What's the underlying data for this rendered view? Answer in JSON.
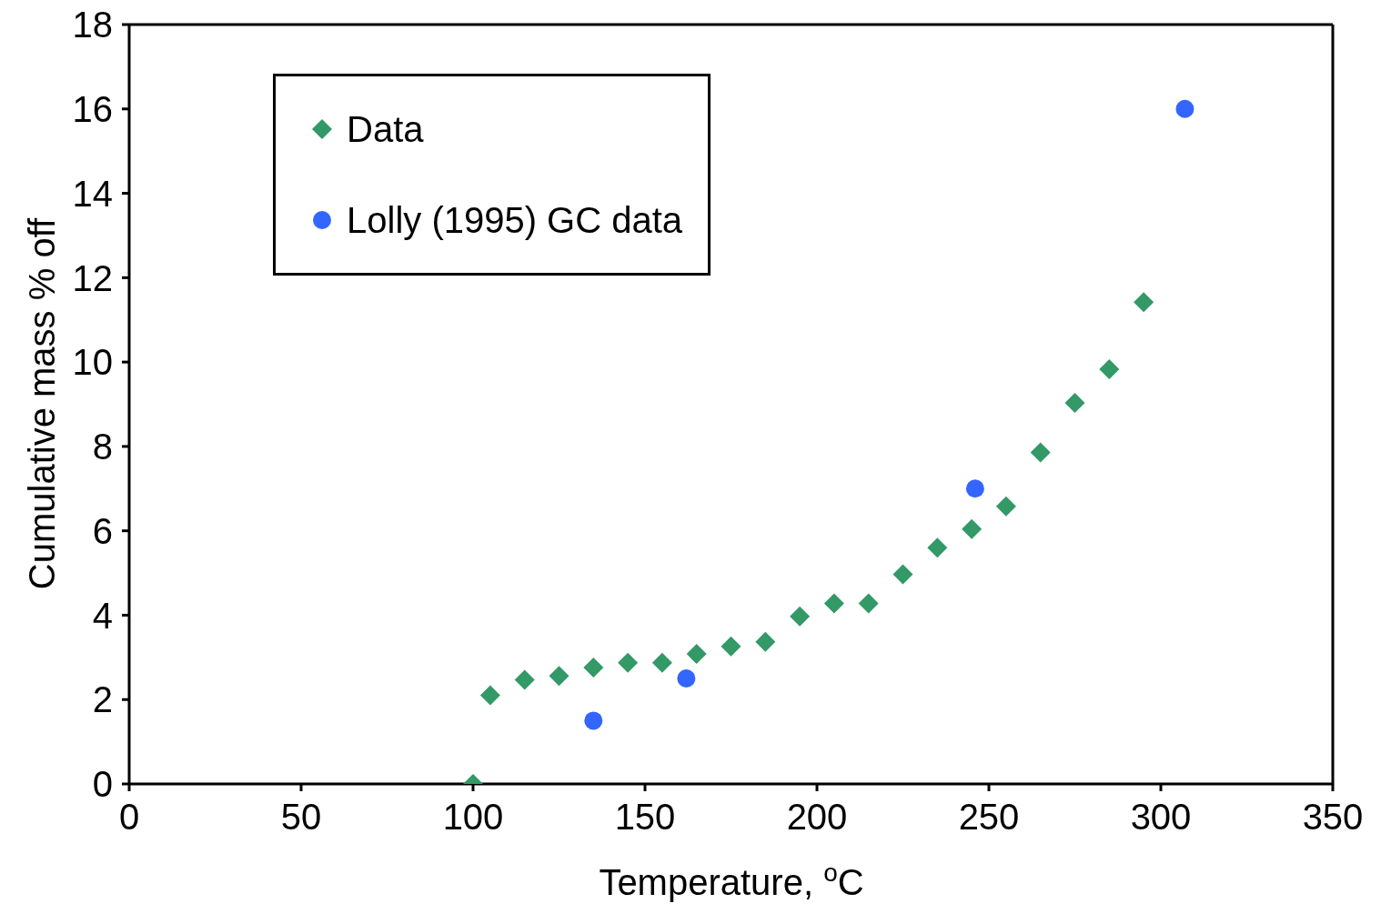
{
  "chart_data": {
    "type": "scatter",
    "xlabel": "Temperature, $^{o}$C",
    "ylabel": "Cumulative mass % off",
    "xlim": [
      0,
      350
    ],
    "xticks": [
      0,
      50,
      100,
      150,
      200,
      250,
      300,
      350
    ],
    "ylim": [
      0,
      18
    ],
    "yticks": [
      0,
      2,
      4,
      6,
      8,
      10,
      12,
      14,
      16,
      18
    ],
    "legend": "top left",
    "series": [
      {
        "name": "Data",
        "color": "#339966",
        "marker": "diamond",
        "x": [
          100,
          105,
          115,
          125,
          135,
          145,
          155,
          165,
          175,
          185,
          195,
          205,
          215,
          225,
          235,
          245,
          255,
          265,
          275,
          285,
          295
        ],
        "values": [
          0,
          2.1,
          2.47,
          2.56,
          2.76,
          2.87,
          2.87,
          3.08,
          3.26,
          3.37,
          3.97,
          4.28,
          4.28,
          4.97,
          5.6,
          6.04,
          6.58,
          7.86,
          9.03,
          9.83,
          11.42
        ]
      },
      {
        "name": "Lolly (1995) GC data",
        "color": "#3366ff",
        "marker": "circle",
        "x": [
          135,
          162,
          246,
          307
        ],
        "values": [
          1.5,
          2.5,
          7.0,
          16.0
        ]
      }
    ]
  }
}
